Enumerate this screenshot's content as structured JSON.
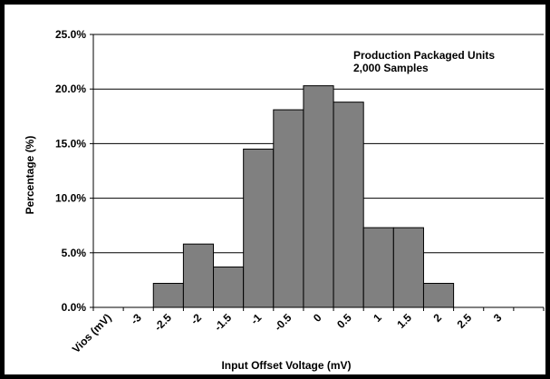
{
  "chart_data": {
    "type": "bar",
    "title": "",
    "xlabel": "Input Offset Voltage (mV)",
    "ylabel": "Percentage (%)",
    "x_axis_prefix_label": "Vios (mV)",
    "x_tick_labels": [
      "-3",
      "-2.5",
      "-2",
      "-1.5",
      "-1",
      "-0.5",
      "0",
      "0.5",
      "1",
      "1.5",
      "2",
      "2.5",
      "3"
    ],
    "y_tick_labels": [
      "0.0%",
      "5.0%",
      "10.0%",
      "15.0%",
      "20.0%",
      "25.0%"
    ],
    "ylim": [
      0,
      25
    ],
    "grid": true,
    "annotation_lines": [
      "Production Packaged Units",
      "2,000 Samples"
    ],
    "bins": [
      {
        "from": -3.0,
        "to": -2.5,
        "value": 0.0
      },
      {
        "from": -2.5,
        "to": -2.0,
        "value": 2.2
      },
      {
        "from": -2.0,
        "to": -1.5,
        "value": 5.8
      },
      {
        "from": -1.5,
        "to": -1.0,
        "value": 3.7
      },
      {
        "from": -1.0,
        "to": -0.5,
        "value": 14.5
      },
      {
        "from": -0.5,
        "to": 0.0,
        "value": 18.1
      },
      {
        "from": 0.0,
        "to": 0.5,
        "value": 20.3
      },
      {
        "from": 0.5,
        "to": 1.0,
        "value": 18.8
      },
      {
        "from": 1.0,
        "to": 1.5,
        "value": 7.3
      },
      {
        "from": 1.5,
        "to": 2.0,
        "value": 7.3
      },
      {
        "from": 2.0,
        "to": 2.5,
        "value": 2.2
      },
      {
        "from": 2.5,
        "to": 3.0,
        "value": 0.0
      }
    ],
    "bar_color": "#808080",
    "bar_edge_color": "#000000"
  }
}
